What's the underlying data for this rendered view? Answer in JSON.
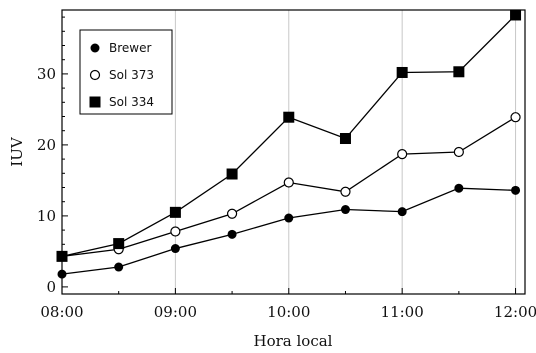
{
  "chart_data": {
    "type": "line",
    "title": "",
    "xlabel": "Hora local",
    "ylabel": "IUV",
    "x_ticks": [
      "08:00",
      "09:00",
      "10:00",
      "11:00",
      "12:00"
    ],
    "y_ticks": [
      "0",
      "10",
      "20",
      "30"
    ],
    "xlim": [
      "08:00",
      "12:05"
    ],
    "ylim": [
      -1,
      39
    ],
    "grid": "vertical",
    "legend_position": "top-left",
    "x": [
      "08:00",
      "08:30",
      "09:00",
      "09:30",
      "10:00",
      "10:30",
      "11:00",
      "11:30",
      "12:00"
    ],
    "series": [
      {
        "name": "Brewer",
        "marker": "filled-circle",
        "values": [
          1.8,
          2.8,
          5.4,
          7.4,
          9.7,
          10.9,
          10.6,
          13.9,
          13.6
        ]
      },
      {
        "name": "Sol 373",
        "marker": "open-circle",
        "values": [
          4.3,
          5.3,
          7.8,
          10.3,
          14.7,
          13.4,
          18.7,
          19.0,
          23.9
        ]
      },
      {
        "name": "Sol 334",
        "marker": "filled-square",
        "values": [
          4.3,
          6.1,
          10.5,
          15.9,
          23.9,
          20.9,
          30.2,
          30.3,
          38.3
        ]
      }
    ]
  }
}
